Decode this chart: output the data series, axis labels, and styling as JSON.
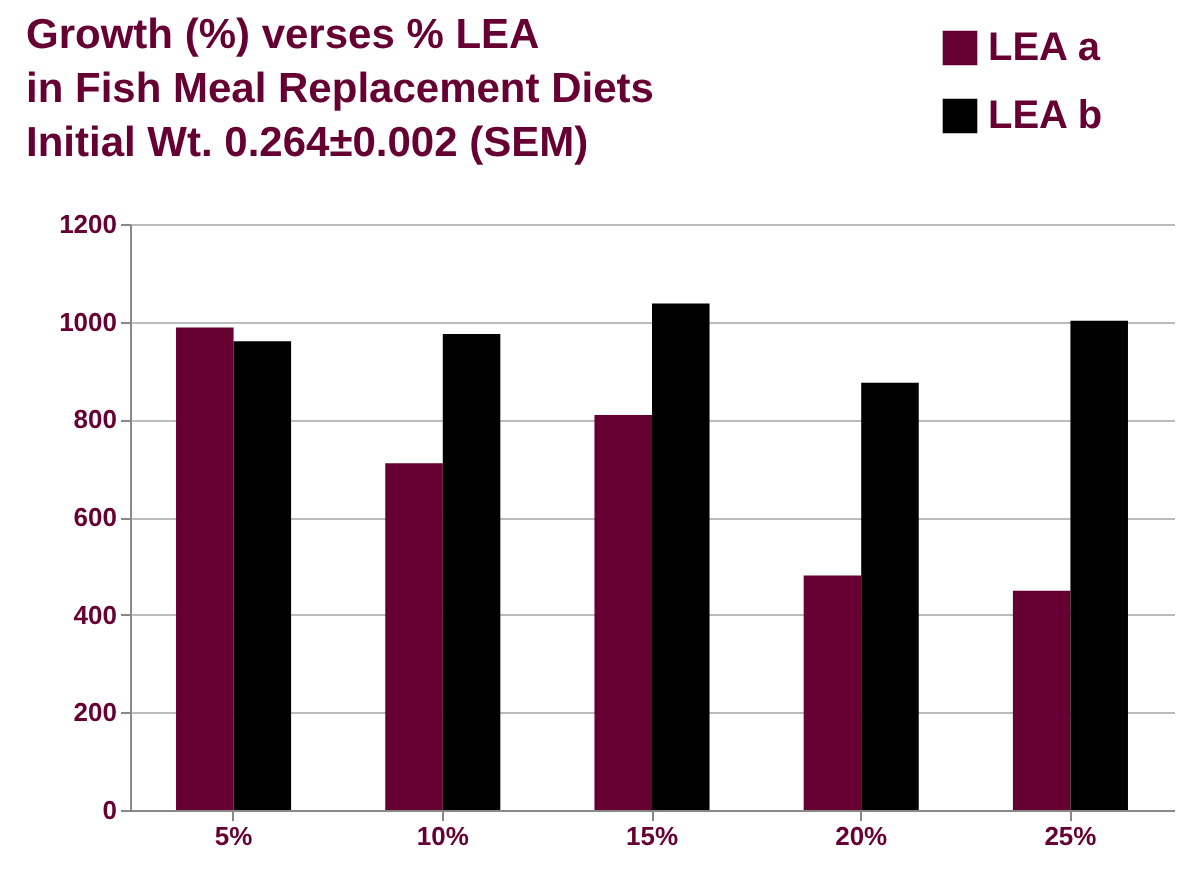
{
  "chart_data": {
    "type": "bar",
    "title": [
      "Growth (%) verses % LEA",
      "in Fish Meal Replacement Diets",
      "Initial Wt. 0.264±0.002 (SEM)"
    ],
    "categories": [
      "5%",
      "10%",
      "15%",
      "20%",
      "25%"
    ],
    "series": [
      {
        "name": "LEA a",
        "color": "#660033",
        "values": [
          988,
          710,
          809,
          480,
          449
        ]
      },
      {
        "name": "LEA b",
        "color": "#000000",
        "values": [
          960,
          975,
          1037,
          875,
          1002
        ]
      }
    ],
    "ylim": [
      0,
      1200
    ],
    "yticks": [
      0,
      200,
      400,
      600,
      800,
      1000,
      1200
    ],
    "grid": "y",
    "legend": "top right"
  }
}
